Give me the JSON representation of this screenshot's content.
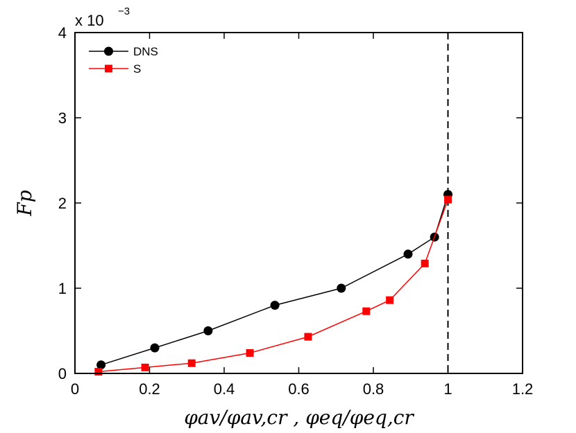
{
  "chart_data": {
    "type": "line",
    "title": "",
    "xlabel": "φav/φav,cr , φeq/φeq,cr",
    "ylabel": "Fp",
    "y_multiplier_label": "x 10",
    "y_multiplier_exponent": "−3",
    "xlim": [
      0,
      1.2
    ],
    "ylim": [
      0,
      4
    ],
    "x_ticks": [
      0,
      0.2,
      0.4,
      0.6,
      0.8,
      1,
      1.2
    ],
    "x_tick_labels": [
      "0",
      "0.2",
      "0.4",
      "0.6",
      "0.8",
      "1",
      "1.2"
    ],
    "y_ticks": [
      0,
      1,
      2,
      3,
      4
    ],
    "y_tick_labels": [
      "0",
      "1",
      "2",
      "3",
      "4"
    ],
    "grid": false,
    "legend_position": "top-left",
    "vertical_reference_line": {
      "x": 1.0,
      "style": "dashed",
      "color": "#000000"
    },
    "series": [
      {
        "name": "DNS",
        "color": "#000000",
        "marker": "circle",
        "x": [
          0.07,
          0.214,
          0.357,
          0.536,
          0.714,
          0.893,
          0.964,
          1.0
        ],
        "y": [
          0.1,
          0.3,
          0.5,
          0.8,
          1.0,
          1.4,
          1.6,
          2.1
        ]
      },
      {
        "name": "S",
        "color": "#ff0000",
        "marker": "square",
        "x": [
          0.063,
          0.188,
          0.313,
          0.469,
          0.625,
          0.781,
          0.844,
          0.938,
          1.0
        ],
        "y": [
          0.02,
          0.07,
          0.12,
          0.24,
          0.43,
          0.73,
          0.86,
          1.29,
          2.04
        ]
      }
    ]
  }
}
